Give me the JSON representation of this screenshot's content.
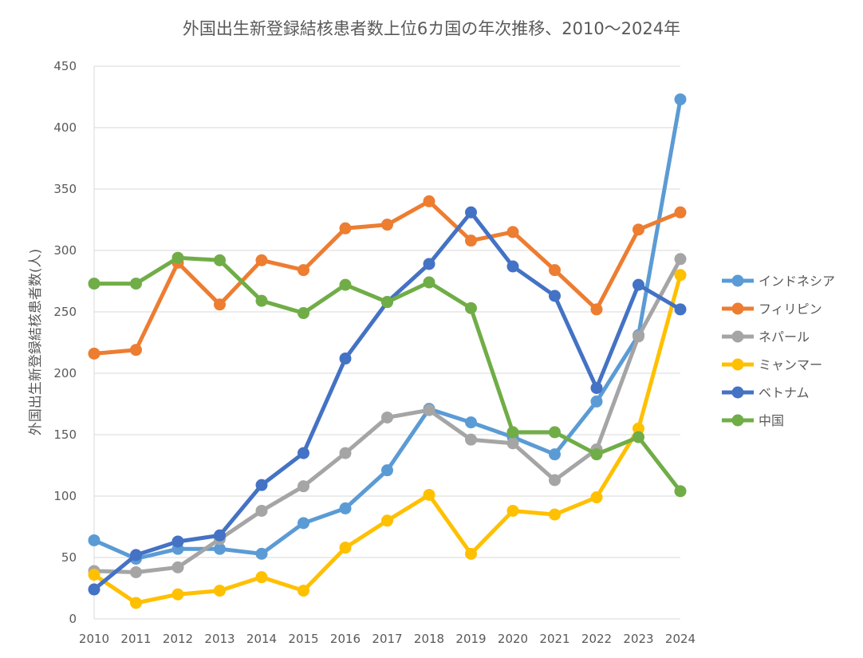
{
  "chart_data": {
    "type": "line",
    "title": "外国出生新登録結核患者数上位6カ国の年次推移、2010〜2024年",
    "xlabel": "",
    "ylabel": "外国出生新登録結核患者数(人)",
    "ylim": [
      0,
      450
    ],
    "yticks": [
      0,
      50,
      100,
      150,
      200,
      250,
      300,
      350,
      400,
      450
    ],
    "x": [
      "2010",
      "2011",
      "2012",
      "2013",
      "2014",
      "2015",
      "2016",
      "2017",
      "2018",
      "2019",
      "2020",
      "2021",
      "2022",
      "2023",
      "2024"
    ],
    "grid": "horizontal",
    "legend_position": "right",
    "series": [
      {
        "name": "インドネシア",
        "color": "#5B9BD5",
        "values": [
          64,
          49,
          57,
          57,
          53,
          78,
          90,
          121,
          171,
          160,
          148,
          134,
          177,
          231,
          423
        ]
      },
      {
        "name": "フィリピン",
        "color": "#ED7D31",
        "values": [
          216,
          219,
          290,
          256,
          292,
          284,
          318,
          321,
          340,
          308,
          315,
          284,
          252,
          317,
          331
        ]
      },
      {
        "name": "ネパール",
        "color": "#A5A5A5",
        "values": [
          39,
          38,
          42,
          65,
          88,
          108,
          135,
          164,
          170,
          146,
          143,
          113,
          138,
          230,
          293
        ]
      },
      {
        "name": "ミャンマー",
        "color": "#FFC000",
        "values": [
          36,
          13,
          20,
          23,
          34,
          23,
          58,
          80,
          101,
          53,
          88,
          85,
          99,
          155,
          280
        ]
      },
      {
        "name": "ベトナム",
        "color": "#4472C4",
        "values": [
          24,
          52,
          63,
          68,
          109,
          135,
          212,
          258,
          289,
          331,
          287,
          263,
          188,
          272,
          252
        ]
      },
      {
        "name": "中国",
        "color": "#70AD47",
        "values": [
          273,
          273,
          294,
          292,
          259,
          249,
          272,
          258,
          274,
          253,
          152,
          152,
          134,
          148,
          104
        ]
      }
    ]
  }
}
